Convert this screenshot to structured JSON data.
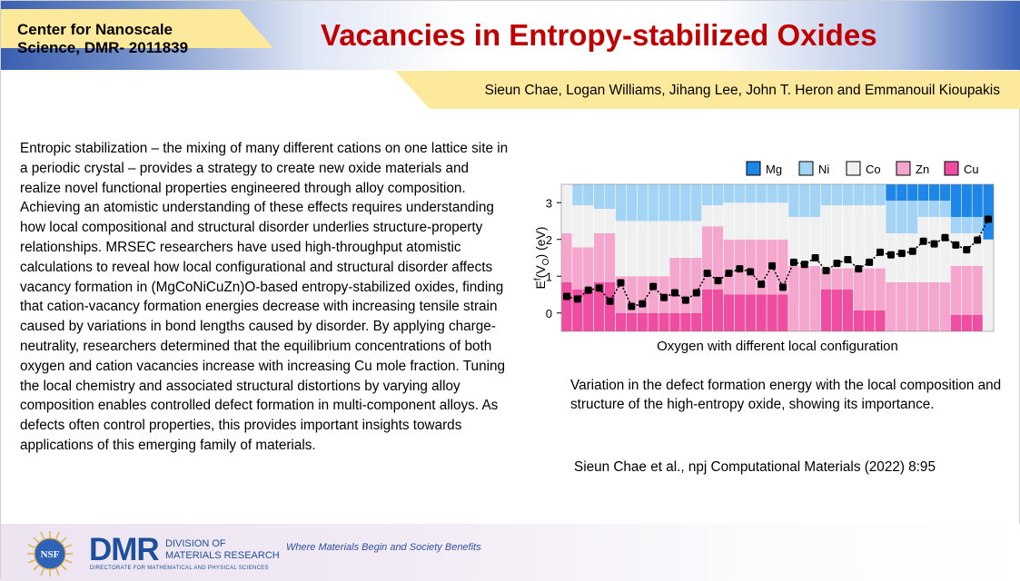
{
  "header": {
    "center_line1": "Center for Nanoscale",
    "center_line2": "Science, DMR- 2011839",
    "title": "Vacancies in Entropy-stabilized Oxides",
    "authors": "Sieun Chae, Logan Williams, Jihang Lee, John T. Heron and Emmanouil Kioupakis"
  },
  "body_text": "Entropic stabilization – the mixing of many different cations on one lattice site in a periodic crystal – provides a strategy to create new oxide materials and realize novel functional properties engineered through alloy composition. Achieving an atomistic understanding of these effects requires understanding how local compositional and structural disorder underlies structure-property relationships. MRSEC researchers have used high-throughput atomistic calculations to reveal how local configurational and structural disorder affects vacancy formation in (MgCoNiCuZn)O-based entropy-stabilized oxides, finding that cation-vacancy formation energies decrease with increasing tensile strain caused by variations in bond lengths caused by disorder. By applying charge-neutrality, researchers determined that the equilibrium concentrations of both oxygen and cation vacancies increase with increasing Cu mole fraction. Tuning the local chemistry and associated structural distortions by varying alloy composition enables controlled defect formation in multi-component alloys. As defects often control properties, this provides important insights towards applications of this emerging family of materials.",
  "caption": "Variation in the defect formation energy with the local composition and structure of the high-entropy oxide, showing its importance.",
  "citation": "Sieun Chae et al., npj Computational Materials (2022) 8:95",
  "footer": {
    "nsf_label": "NSF",
    "dmr_logo": "DMR",
    "dmr_division_line1": "DIVISION OF",
    "dmr_division_line2": "MATERIALS RESEARCH",
    "dmr_directorate": "DIRECTORATE FOR MATHEMATICAL AND PHYSICAL SCIENCES",
    "tagline": "Where Materials Begin and Society Benefits"
  },
  "colors": {
    "title_red": "#c00000",
    "banner_yellow": "#fde99c",
    "mg": "#1e86e6",
    "ni": "#a3d3f5",
    "co": "#f0f0f0",
    "zn": "#f5a6cc",
    "cu": "#ef4ea0"
  },
  "chart_data": {
    "type": "scatter",
    "xlabel": "Oxygen with different local configuration",
    "ylabel": "E^f(V_O) (eV)",
    "ylim": [
      -0.5,
      3.5
    ],
    "yticks": [
      "0",
      "1",
      "2",
      "3"
    ],
    "legend": [
      "Mg",
      "Ni",
      "Co",
      "Zn",
      "Cu"
    ],
    "legend_placement": "top-right",
    "series": [
      {
        "values": [
          0.45,
          0.38,
          0.62,
          0.68,
          0.32,
          0.82,
          0.18,
          0.25,
          0.72,
          0.42,
          0.55,
          0.35,
          0.55,
          1.08,
          0.88,
          1.08,
          1.2,
          1.12,
          0.78,
          1.28,
          0.7,
          1.38,
          1.32,
          1.5,
          1.15,
          1.35,
          1.45,
          1.2,
          1.38,
          1.65,
          1.58,
          1.62,
          1.68,
          1.95,
          1.88,
          2.05,
          1.85,
          1.72,
          1.98,
          2.55
        ]
      }
    ],
    "stacks": [
      [
        0,
        0,
        2,
        2,
        2
      ],
      [
        0,
        1,
        2,
        2,
        2
      ],
      [
        0,
        1,
        2,
        2,
        2
      ],
      [
        0,
        1,
        1,
        2,
        2
      ],
      [
        0,
        1,
        1,
        2,
        2
      ],
      [
        0,
        2,
        3,
        2,
        1
      ],
      [
        0,
        2,
        3,
        2,
        1
      ],
      [
        0,
        2,
        3,
        2,
        1
      ],
      [
        0,
        2,
        3,
        2,
        1
      ],
      [
        0,
        2,
        3,
        2,
        1
      ],
      [
        0,
        2,
        2,
        3,
        1
      ],
      [
        0,
        2,
        2,
        3,
        1
      ],
      [
        0,
        2,
        2,
        3,
        1
      ],
      [
        0,
        1,
        1,
        3,
        2
      ],
      [
        0,
        1,
        1,
        3,
        2
      ],
      [
        0,
        1,
        2,
        3,
        2
      ],
      [
        0,
        1,
        2,
        3,
        2
      ],
      [
        0,
        1,
        2,
        3,
        2
      ],
      [
        0,
        1,
        2,
        3,
        2
      ],
      [
        0,
        1,
        2,
        3,
        2
      ],
      [
        0,
        1,
        2,
        3,
        2
      ],
      [
        0,
        2,
        3,
        4,
        0
      ],
      [
        0,
        2,
        3,
        4,
        0
      ],
      [
        0,
        2,
        3,
        4,
        0
      ],
      [
        0,
        1,
        3,
        1,
        2
      ],
      [
        0,
        1,
        3,
        1,
        2
      ],
      [
        0,
        1,
        3,
        1,
        2
      ],
      [
        0,
        1,
        3,
        2,
        1
      ],
      [
        0,
        1,
        3,
        2,
        1
      ],
      [
        0,
        1,
        3,
        2,
        1
      ],
      [
        1,
        2,
        3,
        3,
        0
      ],
      [
        1,
        2,
        3,
        3,
        0
      ],
      [
        1,
        2,
        3,
        3,
        0
      ],
      [
        1,
        1,
        4,
        3,
        0
      ],
      [
        1,
        1,
        4,
        3,
        0
      ],
      [
        1,
        1,
        4,
        3,
        0
      ],
      [
        2,
        1,
        2,
        3,
        1
      ],
      [
        2,
        1,
        2,
        3,
        1
      ],
      [
        2,
        1,
        2,
        3,
        1
      ],
      [
        3,
        0,
        5,
        0,
        0
      ]
    ]
  }
}
